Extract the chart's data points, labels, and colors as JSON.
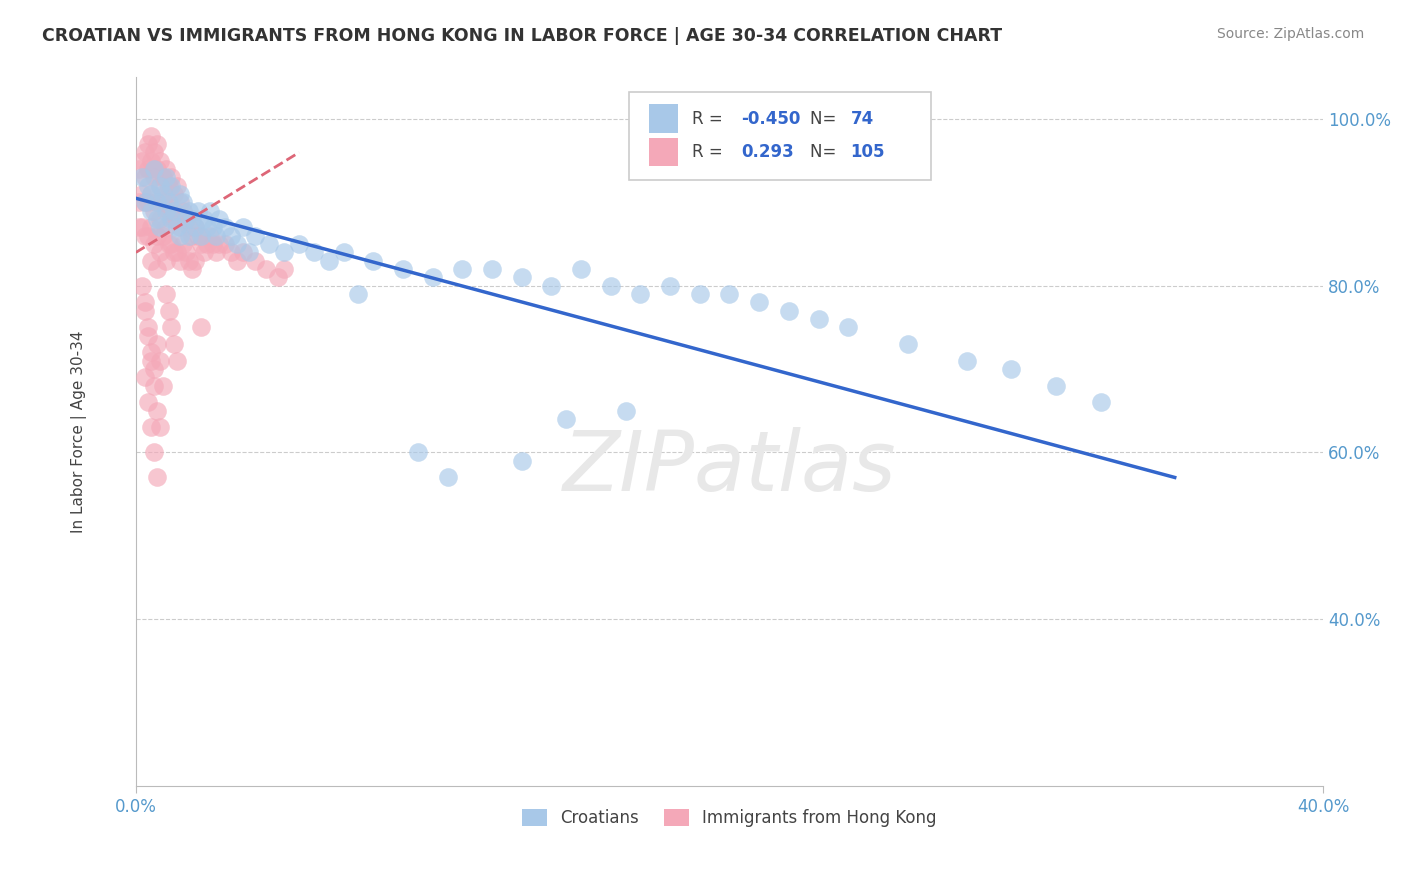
{
  "title": "CROATIAN VS IMMIGRANTS FROM HONG KONG IN LABOR FORCE | AGE 30-34 CORRELATION CHART",
  "source": "Source: ZipAtlas.com",
  "ylabel": "In Labor Force | Age 30-34",
  "xlim": [
    0.0,
    0.4
  ],
  "ylim": [
    0.2,
    1.05
  ],
  "ytick_positions": [
    0.4,
    0.6,
    0.8,
    1.0
  ],
  "ytick_labels": [
    "40.0%",
    "60.0%",
    "80.0%",
    "100.0%"
  ],
  "xtick_positions": [
    0.0,
    0.4
  ],
  "xtick_labels": [
    "0.0%",
    "40.0%"
  ],
  "blue_R": -0.45,
  "blue_N": 74,
  "pink_R": 0.293,
  "pink_N": 105,
  "blue_color": "#a8c8e8",
  "pink_color": "#f4a8b8",
  "blue_line_color": "#3366cc",
  "pink_line_color": "#dd6677",
  "legend_label_blue": "Croatians",
  "legend_label_pink": "Immigrants from Hong Kong",
  "blue_x": [
    0.002,
    0.003,
    0.004,
    0.005,
    0.005,
    0.006,
    0.007,
    0.007,
    0.008,
    0.008,
    0.009,
    0.01,
    0.01,
    0.011,
    0.012,
    0.012,
    0.013,
    0.014,
    0.015,
    0.015,
    0.016,
    0.017,
    0.018,
    0.018,
    0.019,
    0.02,
    0.021,
    0.022,
    0.023,
    0.024,
    0.025,
    0.026,
    0.027,
    0.028,
    0.03,
    0.032,
    0.034,
    0.036,
    0.038,
    0.04,
    0.045,
    0.05,
    0.055,
    0.06,
    0.065,
    0.07,
    0.08,
    0.09,
    0.1,
    0.11,
    0.12,
    0.13,
    0.14,
    0.15,
    0.16,
    0.17,
    0.18,
    0.19,
    0.2,
    0.21,
    0.22,
    0.23,
    0.24,
    0.26,
    0.28,
    0.295,
    0.31,
    0.325,
    0.13,
    0.095,
    0.075,
    0.105,
    0.145,
    0.165
  ],
  "blue_y": [
    0.93,
    0.9,
    0.92,
    0.91,
    0.89,
    0.94,
    0.9,
    0.88,
    0.92,
    0.87,
    0.91,
    0.93,
    0.89,
    0.9,
    0.88,
    0.92,
    0.89,
    0.87,
    0.91,
    0.86,
    0.9,
    0.88,
    0.89,
    0.86,
    0.88,
    0.87,
    0.89,
    0.86,
    0.88,
    0.87,
    0.89,
    0.87,
    0.86,
    0.88,
    0.87,
    0.86,
    0.85,
    0.87,
    0.84,
    0.86,
    0.85,
    0.84,
    0.85,
    0.84,
    0.83,
    0.84,
    0.83,
    0.82,
    0.81,
    0.82,
    0.82,
    0.81,
    0.8,
    0.82,
    0.8,
    0.79,
    0.8,
    0.79,
    0.79,
    0.78,
    0.77,
    0.76,
    0.75,
    0.73,
    0.71,
    0.7,
    0.68,
    0.66,
    0.59,
    0.6,
    0.79,
    0.57,
    0.64,
    0.65
  ],
  "pink_x": [
    0.001,
    0.001,
    0.001,
    0.002,
    0.002,
    0.002,
    0.003,
    0.003,
    0.003,
    0.003,
    0.004,
    0.004,
    0.004,
    0.004,
    0.005,
    0.005,
    0.005,
    0.005,
    0.005,
    0.006,
    0.006,
    0.006,
    0.006,
    0.007,
    0.007,
    0.007,
    0.007,
    0.007,
    0.008,
    0.008,
    0.008,
    0.008,
    0.009,
    0.009,
    0.009,
    0.01,
    0.01,
    0.01,
    0.01,
    0.011,
    0.011,
    0.011,
    0.012,
    0.012,
    0.012,
    0.013,
    0.013,
    0.013,
    0.014,
    0.014,
    0.014,
    0.015,
    0.015,
    0.015,
    0.016,
    0.016,
    0.017,
    0.017,
    0.018,
    0.018,
    0.019,
    0.019,
    0.02,
    0.02,
    0.021,
    0.022,
    0.023,
    0.024,
    0.025,
    0.026,
    0.027,
    0.028,
    0.03,
    0.032,
    0.034,
    0.036,
    0.04,
    0.044,
    0.048,
    0.05,
    0.003,
    0.004,
    0.005,
    0.006,
    0.007,
    0.008,
    0.009,
    0.002,
    0.003,
    0.004,
    0.005,
    0.006,
    0.007,
    0.008,
    0.003,
    0.004,
    0.005,
    0.006,
    0.007,
    0.01,
    0.011,
    0.012,
    0.013,
    0.014,
    0.022
  ],
  "pink_y": [
    0.94,
    0.9,
    0.87,
    0.95,
    0.91,
    0.87,
    0.96,
    0.93,
    0.9,
    0.86,
    0.97,
    0.94,
    0.9,
    0.86,
    0.98,
    0.95,
    0.91,
    0.87,
    0.83,
    0.96,
    0.93,
    0.89,
    0.85,
    0.97,
    0.94,
    0.9,
    0.86,
    0.82,
    0.95,
    0.92,
    0.88,
    0.84,
    0.93,
    0.9,
    0.86,
    0.94,
    0.91,
    0.87,
    0.83,
    0.92,
    0.89,
    0.85,
    0.93,
    0.89,
    0.85,
    0.91,
    0.88,
    0.84,
    0.92,
    0.88,
    0.84,
    0.9,
    0.87,
    0.83,
    0.89,
    0.85,
    0.88,
    0.84,
    0.87,
    0.83,
    0.86,
    0.82,
    0.87,
    0.83,
    0.86,
    0.85,
    0.84,
    0.85,
    0.86,
    0.85,
    0.84,
    0.85,
    0.85,
    0.84,
    0.83,
    0.84,
    0.83,
    0.82,
    0.81,
    0.82,
    0.78,
    0.75,
    0.72,
    0.7,
    0.73,
    0.71,
    0.68,
    0.8,
    0.77,
    0.74,
    0.71,
    0.68,
    0.65,
    0.63,
    0.69,
    0.66,
    0.63,
    0.6,
    0.57,
    0.79,
    0.77,
    0.75,
    0.73,
    0.71,
    0.75
  ],
  "blue_trend_x": [
    0.0,
    0.35
  ],
  "blue_trend_y": [
    0.905,
    0.57
  ],
  "pink_trend_x": [
    0.0,
    0.055
  ],
  "pink_trend_y": [
    0.84,
    0.96
  ]
}
